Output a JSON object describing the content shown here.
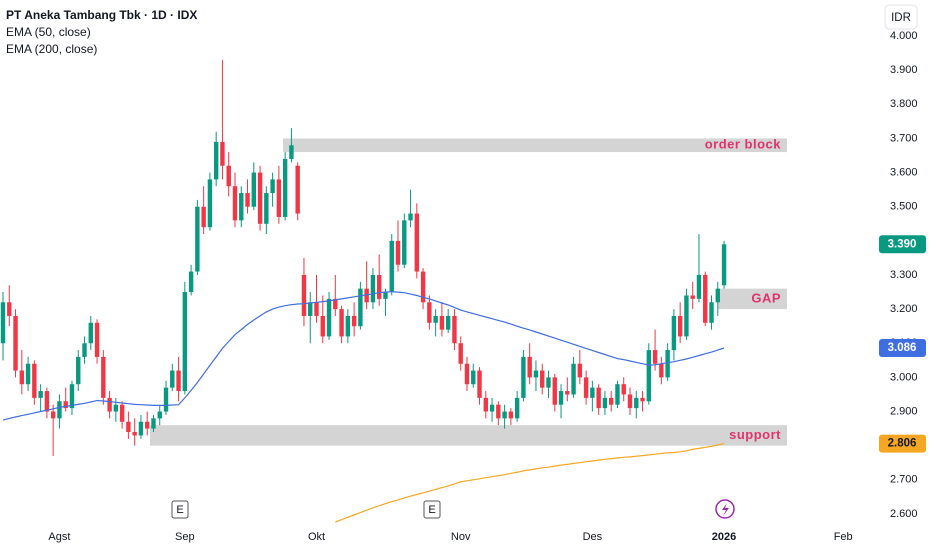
{
  "chart_data": {
    "type": "candlestick",
    "title": "PT Aneka Tambang Tbk · 1D · IDX",
    "currency": "IDR",
    "categories": [
      null,
      null,
      null,
      null,
      null,
      null,
      null,
      null,
      null,
      "Agst",
      null,
      null,
      null,
      null,
      null,
      null,
      null,
      null,
      null,
      null,
      null,
      null,
      null,
      null,
      null,
      null,
      null,
      null,
      null,
      "Sep",
      null,
      null,
      null,
      null,
      null,
      null,
      null,
      null,
      null,
      null,
      null,
      null,
      null,
      null,
      null,
      null,
      null,
      null,
      null,
      null,
      "Okt",
      null,
      null,
      null,
      null,
      null,
      null,
      null,
      null,
      null,
      null,
      null,
      null,
      null,
      null,
      null,
      null,
      null,
      null,
      null,
      null,
      null,
      null,
      "Nov",
      null,
      null,
      null,
      null,
      null,
      null,
      null,
      null,
      null,
      null,
      null,
      null,
      null,
      null,
      null,
      null,
      null,
      null,
      null,
      null,
      "Des",
      null,
      null,
      null,
      null,
      null,
      null,
      null,
      null,
      null,
      null,
      null,
      null,
      null,
      null,
      null,
      null,
      null,
      null,
      null,
      null,
      "2026",
      null,
      null,
      null,
      null,
      null,
      null,
      null,
      null,
      null,
      null,
      null,
      null,
      null,
      null,
      null,
      null,
      null,
      null,
      "Feb"
    ],
    "open": [
      3100,
      3220,
      3180,
      3020,
      2980,
      3040,
      2940,
      2960,
      2900,
      2880,
      2930,
      2910,
      2980,
      3060,
      3100,
      3160,
      3060,
      2940,
      2900,
      2920,
      2870,
      2840,
      2830,
      2870,
      2850,
      2880,
      2900,
      2970,
      3020,
      2960,
      3250,
      3310,
      3500,
      3440,
      3580,
      3690,
      3620,
      3560,
      3460,
      3540,
      3500,
      3600,
      3450,
      3540,
      3580,
      3470,
      3640,
      3620,
      3300,
      3180,
      3220,
      3180,
      3120,
      3230,
      3200,
      3120,
      3180,
      3150,
      3260,
      3220,
      3300,
      3230,
      3250,
      3400,
      3330,
      3460,
      3480,
      3310,
      3220,
      3160,
      3180,
      3140,
      3180,
      3100,
      3040,
      2980,
      3020,
      2940,
      2900,
      2920,
      2880,
      2900,
      2880,
      2940,
      3060,
      3000,
      3020,
      2970,
      3000,
      2920,
      2960,
      2950,
      3040,
      3000,
      2940,
      2970,
      2910,
      2940,
      2920,
      2980,
      2950,
      2910,
      2940,
      2930,
      3080,
      3040,
      3000,
      3080,
      3180,
      3120,
      3240,
      3230,
      3300,
      3160,
      3220,
      3270,
      null,
      null,
      null,
      null,
      null,
      null,
      null,
      null,
      null,
      null,
      null,
      null,
      null,
      null,
      null,
      null,
      null,
      null,
      null
    ],
    "high": [
      3250,
      3270,
      3200,
      3080,
      3060,
      3050,
      2980,
      2970,
      2920,
      2950,
      2970,
      2990,
      3080,
      3120,
      3180,
      3170,
      3080,
      2960,
      2940,
      2930,
      2900,
      2880,
      2890,
      2900,
      2890,
      2920,
      2990,
      3040,
      3060,
      3280,
      3330,
      3520,
      3560,
      3600,
      3720,
      3930,
      3660,
      3600,
      3560,
      3580,
      3630,
      3620,
      3560,
      3600,
      3620,
      3660,
      3730,
      3630,
      3350,
      3250,
      3300,
      3240,
      3250,
      3300,
      3210,
      3200,
      3220,
      3280,
      3340,
      3320,
      3360,
      3260,
      3420,
      3460,
      3480,
      3550,
      3510,
      3320,
      3240,
      3200,
      3220,
      3200,
      3200,
      3120,
      3060,
      3040,
      3030,
      2960,
      2940,
      2930,
      2920,
      2910,
      2960,
      3080,
      3100,
      3050,
      3040,
      3020,
      3010,
      2980,
      3000,
      3060,
      3080,
      3020,
      2990,
      2980,
      2960,
      2960,
      2990,
      3000,
      2970,
      2960,
      2960,
      3100,
      3140,
      3060,
      3100,
      3200,
      3220,
      3260,
      3280,
      3420,
      3310,
      3240,
      3280,
      3400,
      null,
      null,
      null,
      null,
      null,
      null,
      null,
      null,
      null,
      null,
      null,
      null,
      null,
      null,
      null,
      null,
      null,
      null,
      null
    ],
    "low": [
      3050,
      3150,
      3000,
      2950,
      2960,
      2920,
      2900,
      2880,
      2770,
      2850,
      2900,
      2890,
      2960,
      3040,
      3080,
      3040,
      2920,
      2880,
      2870,
      2850,
      2820,
      2800,
      2820,
      2830,
      2840,
      2860,
      2890,
      2960,
      2930,
      2950,
      3240,
      3300,
      3420,
      3430,
      3560,
      3580,
      3530,
      3440,
      3440,
      3480,
      3490,
      3430,
      3420,
      3500,
      3450,
      3460,
      3630,
      3460,
      3150,
      3100,
      3160,
      3100,
      3110,
      3180,
      3100,
      3100,
      3120,
      3140,
      3200,
      3200,
      3210,
      3180,
      3240,
      3310,
      3320,
      3440,
      3290,
      3200,
      3140,
      3120,
      3120,
      3130,
      3080,
      3020,
      2960,
      2970,
      2920,
      2880,
      2870,
      2860,
      2850,
      2860,
      2870,
      2930,
      2980,
      2960,
      2950,
      2940,
      2900,
      2880,
      2930,
      2940,
      2980,
      2920,
      2900,
      2890,
      2890,
      2900,
      2910,
      2930,
      2890,
      2880,
      2900,
      2920,
      3020,
      2980,
      2990,
      3050,
      3100,
      3110,
      3200,
      3220,
      3150,
      3140,
      3180,
      3260,
      null,
      null,
      null,
      null,
      null,
      null,
      null,
      null,
      null,
      null,
      null,
      null,
      null,
      null,
      null,
      null,
      null,
      null,
      null
    ],
    "close": [
      3220,
      3180,
      3020,
      2980,
      3040,
      2940,
      2960,
      2900,
      2880,
      2930,
      2910,
      2980,
      3060,
      3100,
      3160,
      3060,
      2940,
      2900,
      2920,
      2870,
      2840,
      2830,
      2870,
      2850,
      2880,
      2900,
      2970,
      3020,
      2960,
      3250,
      3310,
      3500,
      3440,
      3580,
      3690,
      3620,
      3560,
      3460,
      3540,
      3500,
      3600,
      3450,
      3540,
      3580,
      3470,
      3640,
      3680,
      3480,
      3180,
      3220,
      3180,
      3120,
      3230,
      3200,
      3120,
      3180,
      3150,
      3260,
      3220,
      3300,
      3230,
      3250,
      3400,
      3330,
      3460,
      3480,
      3310,
      3220,
      3160,
      3180,
      3140,
      3180,
      3100,
      3040,
      2980,
      3020,
      2940,
      2900,
      2920,
      2880,
      2900,
      2880,
      2940,
      3060,
      3000,
      3020,
      2970,
      3000,
      2920,
      2960,
      2950,
      3040,
      3000,
      2940,
      2970,
      2910,
      2940,
      2920,
      2980,
      2950,
      2910,
      2940,
      2930,
      3080,
      3040,
      3000,
      3080,
      3180,
      3120,
      3240,
      3230,
      3300,
      3160,
      3220,
      3260,
      3390,
      null,
      null,
      null,
      null,
      null,
      null,
      null,
      null,
      null,
      null,
      null,
      null,
      null,
      null,
      null,
      null,
      null,
      null,
      null
    ],
    "up_color": "#089981",
    "down_color": "#f23645",
    "series": [
      {
        "name": "EMA (50, close)",
        "color": "#3f6ee0",
        "values": [
          2875,
          2880,
          2884,
          2888,
          2892,
          2896,
          2900,
          2904,
          2908,
          2912,
          2915,
          2918,
          2921,
          2924,
          2928,
          2932,
          2931,
          2929,
          2927,
          2925,
          2923,
          2921,
          2920,
          2919,
          2918,
          2918,
          2918,
          2919,
          2920,
          2940,
          2962,
          2985,
          3010,
          3035,
          3060,
          3085,
          3105,
          3125,
          3140,
          3155,
          3168,
          3180,
          3192,
          3200,
          3206,
          3210,
          3213,
          3215,
          3216,
          3218,
          3220,
          3222,
          3224,
          3227,
          3230,
          3233,
          3236,
          3239,
          3242,
          3245,
          3248,
          3250,
          3251,
          3250,
          3248,
          3244,
          3240,
          3235,
          3230,
          3224,
          3218,
          3212,
          3205,
          3197,
          3192,
          3187,
          3182,
          3177,
          3172,
          3167,
          3162,
          3156,
          3150,
          3144,
          3139,
          3133,
          3127,
          3121,
          3115,
          3109,
          3103,
          3097,
          3091,
          3085,
          3079,
          3073,
          3067,
          3061,
          3055,
          3052,
          3048,
          3044,
          3040,
          3036,
          3037,
          3040,
          3043,
          3046,
          3050,
          3054,
          3059,
          3064,
          3069,
          3074,
          3080,
          3086,
          null,
          null,
          null,
          null,
          null,
          null,
          null,
          null,
          null,
          null,
          null,
          null,
          null,
          null,
          null,
          null,
          null,
          null,
          null
        ]
      },
      {
        "name": "EMA (200, close)",
        "color": "#f5a623",
        "values": [
          null,
          null,
          null,
          null,
          null,
          null,
          null,
          null,
          null,
          null,
          null,
          null,
          null,
          null,
          null,
          null,
          null,
          null,
          null,
          null,
          null,
          null,
          null,
          null,
          null,
          null,
          null,
          null,
          null,
          null,
          null,
          null,
          null,
          null,
          null,
          null,
          null,
          null,
          null,
          null,
          null,
          null,
          null,
          null,
          null,
          null,
          null,
          null,
          null,
          null,
          null,
          null,
          null,
          2576,
          2583,
          2590,
          2597,
          2604,
          2611,
          2618,
          2624,
          2630,
          2636,
          2641,
          2647,
          2652,
          2657,
          2662,
          2667,
          2672,
          2677,
          2682,
          2688,
          2694,
          2697,
          2700,
          2703,
          2706,
          2709,
          2712,
          2715,
          2719,
          2722,
          2726,
          2729,
          2732,
          2735,
          2737,
          2740,
          2743,
          2745,
          2748,
          2750,
          2753,
          2755,
          2758,
          2760,
          2762,
          2764,
          2766,
          2767,
          2769,
          2771,
          2773,
          2775,
          2777,
          2779,
          2780,
          2782,
          2785,
          2789,
          2792,
          2795,
          2798,
          2802,
          2806,
          null,
          null,
          null,
          null,
          null,
          null,
          null,
          null,
          null,
          null,
          null,
          null,
          null,
          null,
          null,
          null,
          null,
          null,
          null
        ]
      }
    ],
    "ylim": [
      2550,
      4100
    ],
    "yticks": [
      {
        "value": 2600,
        "label": "2.600"
      },
      {
        "value": 2700,
        "label": "2.700"
      },
      {
        "value": 2800,
        "label": "2.800"
      },
      {
        "value": 2900,
        "label": "2.900"
      },
      {
        "value": 3000,
        "label": "3.000"
      },
      {
        "value": 3100,
        "label": "3.100"
      },
      {
        "value": 3200,
        "label": "3.200"
      },
      {
        "value": 3300,
        "label": "3.300"
      },
      {
        "value": 3400,
        "label": "3.400"
      },
      {
        "value": 3500,
        "label": "3.500"
      },
      {
        "value": 3600,
        "label": "3.600"
      },
      {
        "value": 3700,
        "label": "3.700"
      },
      {
        "value": 3800,
        "label": "3.800"
      },
      {
        "value": 3900,
        "label": "3.900"
      },
      {
        "value": 4000,
        "label": "4.000"
      }
    ],
    "zones": [
      {
        "label": "order block",
        "from": 3660,
        "to": 3700
      },
      {
        "label": "GAP",
        "from": 3200,
        "to": 3260
      },
      {
        "label": "support",
        "from": 2800,
        "to": 2860
      }
    ],
    "events": [
      "E",
      "E"
    ],
    "price_labels": [
      {
        "value": 3390,
        "label": "3.390",
        "color": "#089981"
      },
      {
        "value": 3086,
        "label": "3.086",
        "color": "#3f6ee0"
      },
      {
        "value": 2806,
        "label": "2.806",
        "color": "#f5a623"
      }
    ]
  }
}
